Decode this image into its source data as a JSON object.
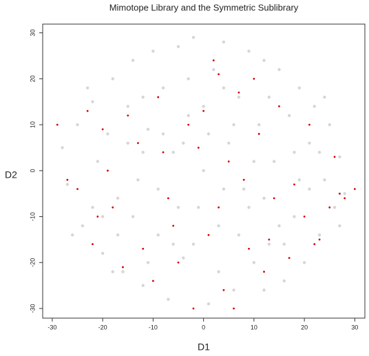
{
  "chart_data": {
    "type": "scatter",
    "title": "Mimotope Library and the Symmetric Sublibrary",
    "x_label": "D1",
    "y_label": "D2",
    "xlim": [
      -31.9,
      32
    ],
    "ylim": [
      -32.1,
      31.9
    ],
    "xticks": [
      -30,
      -20,
      -10,
      0,
      10,
      20,
      30
    ],
    "yticks": [
      -30,
      -20,
      -10,
      0,
      10,
      20,
      30
    ],
    "series": [
      {
        "color": "#c4c4c4",
        "x": [
          -28,
          -27,
          -25,
          -24,
          -22,
          -21,
          -20,
          -19,
          -18,
          -17,
          -16,
          -15,
          -14,
          -13,
          -12,
          -11,
          -10,
          -9,
          -8,
          -7,
          -6,
          -5,
          -4,
          -3,
          -2,
          -1,
          0,
          1,
          2,
          3,
          4,
          5,
          6,
          7,
          8,
          9,
          10,
          11,
          12,
          13,
          14,
          15,
          16,
          17,
          18,
          19,
          20,
          21,
          22,
          23,
          24,
          25,
          26,
          27,
          28,
          -26,
          -23,
          -20,
          -18,
          -15,
          -12,
          -9,
          -6,
          -3,
          0,
          3,
          6,
          9,
          12,
          15,
          18,
          21,
          24,
          27,
          -22,
          -17,
          -11,
          -5,
          1,
          7,
          13,
          19,
          23,
          -14,
          -8,
          -2,
          4,
          10,
          16,
          -12,
          -4,
          4,
          12
        ],
        "y": [
          5,
          -3,
          10,
          -12,
          15,
          2,
          -18,
          8,
          20,
          -6,
          -22,
          14,
          24,
          -2,
          -25,
          9,
          26,
          -14,
          18,
          -28,
          4,
          27,
          -19,
          12,
          29,
          -8,
          0,
          -29,
          22,
          -12,
          28,
          6,
          -26,
          16,
          -4,
          26,
          -20,
          10,
          24,
          -16,
          2,
          22,
          -24,
          12,
          -10,
          18,
          -20,
          6,
          14,
          -14,
          -2,
          10,
          -8,
          3,
          -5,
          -14,
          18,
          -10,
          -22,
          6,
          16,
          -4,
          -16,
          20,
          14,
          -22,
          10,
          -8,
          -6,
          -12,
          4,
          -4,
          16,
          -12,
          -8,
          -14,
          -20,
          -8,
          8,
          -14,
          16,
          -2,
          4,
          -10,
          8,
          -16,
          18,
          2,
          -16,
          4,
          6,
          -4,
          -26
        ]
      },
      {
        "color": "#d40000",
        "x": [
          -29,
          -27,
          -25,
          -23,
          -22,
          -21,
          -20,
          -18,
          -16,
          -15,
          -13,
          -12,
          -10,
          -9,
          -8,
          -6,
          -5,
          -3,
          -2,
          -1,
          0,
          1,
          2,
          3,
          4,
          5,
          6,
          7,
          8,
          9,
          10,
          11,
          12,
          14,
          15,
          17,
          18,
          20,
          21,
          22,
          23,
          25,
          26,
          27,
          28,
          30,
          -19,
          -7,
          3,
          13
        ],
        "y": [
          10,
          -2,
          -4,
          13,
          -16,
          -10,
          9,
          -8,
          -21,
          12,
          6,
          -17,
          -24,
          16,
          4,
          -12,
          -20,
          10,
          -30,
          5,
          13,
          -14,
          24,
          -8,
          -26,
          2,
          -30,
          17,
          -2,
          -17,
          20,
          8,
          -22,
          -6,
          14,
          -19,
          -3,
          -10,
          10,
          -16,
          -15,
          -8,
          3,
          -5,
          -6,
          -4,
          0,
          -6,
          21,
          -15
        ]
      }
    ]
  }
}
